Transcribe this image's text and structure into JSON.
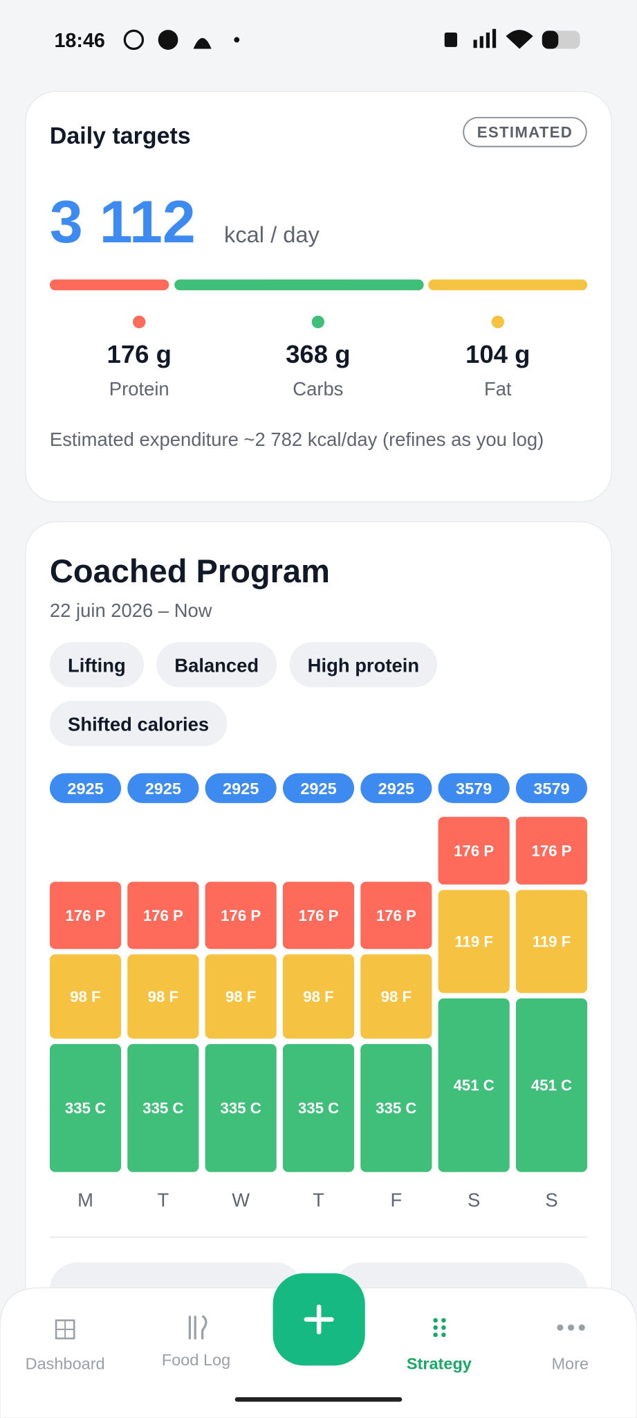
{
  "status_bar": {
    "time": "18:46"
  },
  "daily_targets": {
    "title": "Daily targets",
    "badge": "ESTIMATED",
    "kcal": "3 112",
    "unit": "kcal / day",
    "macros": [
      {
        "amount": "176 g",
        "name": "Protein"
      },
      {
        "amount": "368 g",
        "name": "Carbs"
      },
      {
        "amount": "104 g",
        "name": "Fat"
      }
    ],
    "note": "Estimated expenditure ~2 782 kcal/day (refines as you log)"
  },
  "program": {
    "title": "Coached Program",
    "dates": "22 juin 2026 – Now",
    "tags": [
      "Lifting",
      "Balanced",
      "High protein",
      "Shifted calories"
    ],
    "days": [
      {
        "day": "M",
        "total": 2925,
        "protein": {
          "value": 176,
          "label": "176 P"
        },
        "fat": {
          "value": 98,
          "label": "98 F"
        },
        "carbs": {
          "value": 335,
          "label": "335 C"
        }
      },
      {
        "day": "T",
        "total": 2925,
        "protein": {
          "value": 176,
          "label": "176 P"
        },
        "fat": {
          "value": 98,
          "label": "98 F"
        },
        "carbs": {
          "value": 335,
          "label": "335 C"
        }
      },
      {
        "day": "W",
        "total": 2925,
        "protein": {
          "value": 176,
          "label": "176 P"
        },
        "fat": {
          "value": 98,
          "label": "98 F"
        },
        "carbs": {
          "value": 335,
          "label": "335 C"
        }
      },
      {
        "day": "T",
        "total": 2925,
        "protein": {
          "value": 176,
          "label": "176 P"
        },
        "fat": {
          "value": 98,
          "label": "98 F"
        },
        "carbs": {
          "value": 335,
          "label": "335 C"
        }
      },
      {
        "day": "F",
        "total": 2925,
        "protein": {
          "value": 176,
          "label": "176 P"
        },
        "fat": {
          "value": 98,
          "label": "98 F"
        },
        "carbs": {
          "value": 335,
          "label": "335 C"
        }
      },
      {
        "day": "S",
        "total": 3579,
        "protein": {
          "value": 176,
          "label": "176 P"
        },
        "fat": {
          "value": 119,
          "label": "119 F"
        },
        "carbs": {
          "value": 451,
          "label": "451 C"
        }
      },
      {
        "day": "S",
        "total": 3579,
        "protein": {
          "value": 176,
          "label": "176 P"
        },
        "fat": {
          "value": 119,
          "label": "119 F"
        },
        "carbs": {
          "value": 451,
          "label": "451 C"
        }
      }
    ]
  },
  "nav": {
    "items": [
      "Dashboard",
      "Food Log",
      "Strategy",
      "More"
    ]
  }
}
